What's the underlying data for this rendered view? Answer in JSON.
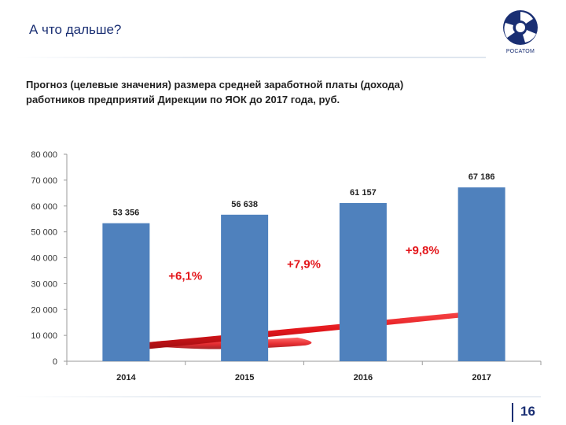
{
  "header": {
    "title": "А что дальше?",
    "logo_text": "РОСАТОМ"
  },
  "subtitle": {
    "line1": "Прогноз (целевые значения) размера средней заработной платы (дохода)",
    "line2": "работников предприятий Дирекции по ЯОК до 2017 года, руб."
  },
  "footer": {
    "page_number": "16"
  },
  "colors": {
    "bar": "#4f81bd",
    "growth_label": "#e3161b",
    "arrow": "#e3161b",
    "brand": "#1a2f73"
  },
  "chart_data": {
    "type": "bar",
    "categories": [
      "2014",
      "2015",
      "2016",
      "2017"
    ],
    "values": [
      53356,
      56638,
      61157,
      67186
    ],
    "value_labels": [
      "53 356",
      "56 638",
      "61 157",
      "67 186"
    ],
    "ylim": [
      0,
      80000
    ],
    "y_ticks": [
      0,
      10000,
      20000,
      30000,
      40000,
      50000,
      60000,
      70000,
      80000
    ],
    "y_tick_labels": [
      "0",
      "10 000",
      "20 000",
      "30 000",
      "40 000",
      "50 000",
      "60 000",
      "70 000",
      "80 000"
    ],
    "growth_labels": [
      "+6,1%",
      "+7,9%",
      "+9,8%"
    ],
    "grid": false
  }
}
